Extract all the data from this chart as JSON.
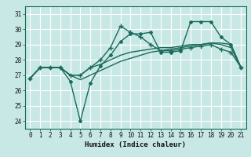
{
  "title": "",
  "xlabel": "Humidex (Indice chaleur)",
  "xlim": [
    -0.5,
    21.5
  ],
  "ylim": [
    23.5,
    31.5
  ],
  "yticks": [
    24,
    25,
    26,
    27,
    28,
    29,
    30,
    31
  ],
  "xticks": [
    0,
    1,
    2,
    3,
    4,
    5,
    6,
    7,
    8,
    9,
    10,
    11,
    12,
    13,
    14,
    15,
    16,
    17,
    18,
    19,
    20,
    21
  ],
  "bg_color": "#c8e8e5",
  "grid_color": "#ffffff",
  "line_color": "#1a6b5a",
  "line1_y": [
    26.8,
    27.5,
    27.5,
    27.5,
    27.0,
    26.7,
    27.0,
    27.3,
    27.6,
    27.9,
    28.1,
    28.3,
    28.5,
    28.6,
    28.7,
    28.8,
    28.9,
    29.0,
    29.1,
    29.1,
    29.0,
    27.5
  ],
  "line2_x": [
    0,
    1,
    2,
    3,
    4,
    5,
    6,
    7,
    8,
    9,
    10,
    11,
    12,
    13,
    14,
    15,
    16,
    17,
    18,
    19,
    20,
    21
  ],
  "line2_y": [
    26.8,
    27.5,
    27.5,
    27.5,
    26.6,
    24.0,
    26.5,
    27.6,
    28.3,
    29.2,
    29.7,
    29.7,
    29.8,
    28.5,
    28.5,
    28.6,
    30.5,
    30.5,
    30.5,
    29.5,
    29.0,
    27.5
  ],
  "line3_x": [
    0,
    1,
    2,
    3,
    4,
    5,
    6,
    7,
    8,
    9,
    10,
    11,
    12,
    13,
    14,
    15,
    16,
    17,
    18,
    19,
    20,
    21
  ],
  "line3_y": [
    26.8,
    27.5,
    27.5,
    27.5,
    27.0,
    27.0,
    27.5,
    28.0,
    28.8,
    30.2,
    29.8,
    29.5,
    29.0,
    28.6,
    28.6,
    28.7,
    28.8,
    28.9,
    29.0,
    28.7,
    28.5,
    27.5
  ],
  "line4_y": [
    26.8,
    27.5,
    27.5,
    27.5,
    27.0,
    27.0,
    27.5,
    27.7,
    28.0,
    28.3,
    28.5,
    28.6,
    28.7,
    28.8,
    28.8,
    28.9,
    29.0,
    29.0,
    29.1,
    29.0,
    28.8,
    27.5
  ]
}
